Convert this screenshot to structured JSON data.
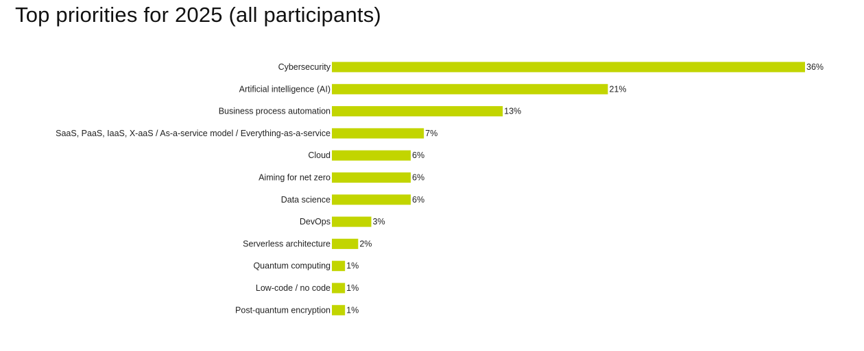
{
  "chart_data": {
    "type": "bar",
    "orientation": "horizontal",
    "title": "Top priorities for 2025 (all participants)",
    "xlabel": "",
    "ylabel": "",
    "value_suffix": "%",
    "xlim": [
      0,
      36
    ],
    "grid": false,
    "legend": "none",
    "bar_color": "#c2d500",
    "categories": [
      "Cybersecurity",
      "Artificial intelligence (AI)",
      "Business process automation",
      "SaaS, PaaS, IaaS, X-aaS / As-a-service model / Everything-as-a-service",
      "Cloud",
      "Aiming for net zero",
      "Data science",
      "DevOps",
      "Serverless architecture",
      "Quantum computing",
      "Low-code / no code",
      "Post-quantum encryption"
    ],
    "values": [
      36,
      21,
      13,
      7,
      6,
      6,
      6,
      3,
      2,
      1,
      1,
      1
    ],
    "data_labels": [
      "36%",
      "21%",
      "13%",
      "7%",
      "6%",
      "6%",
      "6%",
      "3%",
      "2%",
      "1%",
      "1%",
      "1%"
    ]
  }
}
